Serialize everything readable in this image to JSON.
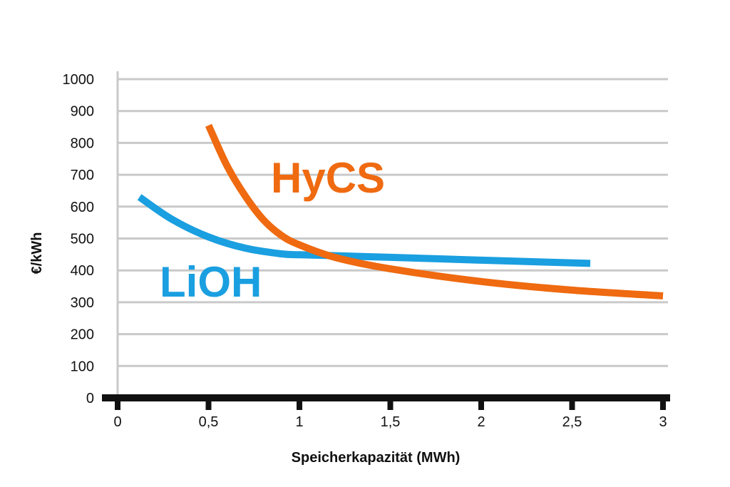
{
  "chart_data": {
    "type": "line",
    "xlabel": "Speicherkapazität (MWh)",
    "ylabel": "€/kWh",
    "xlim": [
      0,
      3
    ],
    "ylim": [
      0,
      1000
    ],
    "x_ticks": [
      "0",
      "0,5",
      "1",
      "1,5",
      "2",
      "2,5",
      "3"
    ],
    "x_tick_values": [
      0,
      0.5,
      1,
      1.5,
      2,
      2.5,
      3
    ],
    "y_ticks": [
      "0",
      "100",
      "200",
      "300",
      "400",
      "500",
      "600",
      "700",
      "800",
      "900",
      "1000"
    ],
    "y_tick_values": [
      0,
      100,
      200,
      300,
      400,
      500,
      600,
      700,
      800,
      900,
      1000
    ],
    "grid": "horizontal",
    "series": [
      {
        "name": "LiOH",
        "color": "#1a9fe0",
        "label_position": "left",
        "x": [
          0.12,
          0.3,
          0.5,
          0.7,
          0.9,
          1.0,
          1.2,
          1.5,
          2.0,
          2.6
        ],
        "y": [
          630,
          560,
          505,
          470,
          452,
          449,
          446,
          441,
          432,
          422
        ]
      },
      {
        "name": "HyCS",
        "color": "#ef6a10",
        "label_position": "top",
        "x": [
          0.5,
          0.6,
          0.7,
          0.8,
          0.9,
          1.0,
          1.2,
          1.5,
          2.0,
          2.5,
          3.0
        ],
        "y": [
          855,
          730,
          635,
          560,
          510,
          480,
          440,
          405,
          365,
          338,
          320
        ]
      }
    ]
  }
}
